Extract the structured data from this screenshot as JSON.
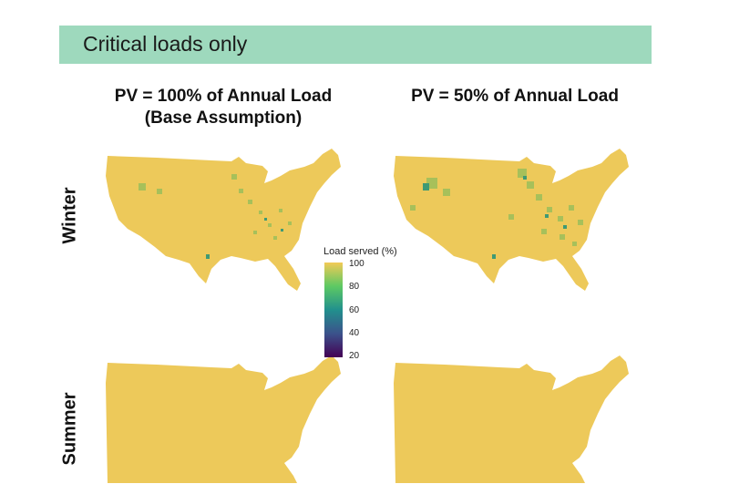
{
  "banner": {
    "title": "Critical loads only"
  },
  "columns": [
    {
      "title_line1": "PV = 100% of Annual Load",
      "title_line2": "(Base Assumption)"
    },
    {
      "title_line1": "PV = 50% of Annual Load",
      "title_line2": ""
    }
  ],
  "rows": [
    {
      "label": "Winter"
    },
    {
      "label": "Summer"
    }
  ],
  "legend": {
    "title": "Load served (%)",
    "ticks": [
      "100",
      "80",
      "60",
      "40",
      "20"
    ],
    "scale_min": 20,
    "scale_max": 100,
    "colors": [
      "#440154",
      "#3b528b",
      "#21908d",
      "#5dc963",
      "#f2ca56"
    ]
  },
  "map_colors": {
    "base": "#edc95a",
    "mid": "#a7c05a",
    "low": "#3f9a74"
  }
}
